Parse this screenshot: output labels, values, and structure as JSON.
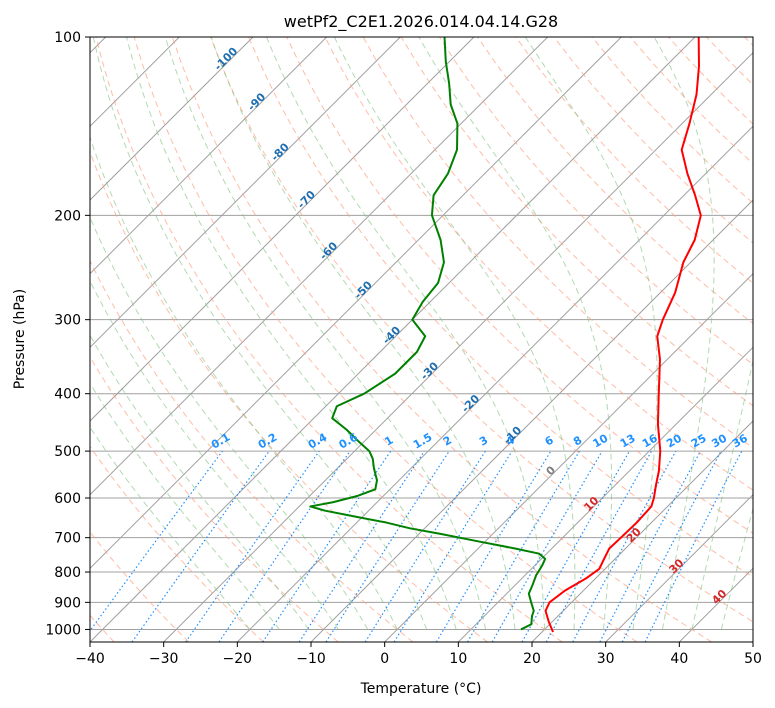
{
  "chart_data": {
    "type": "line",
    "title": "wetPf2_C2E1.2026.014.04.14.G28",
    "xlabel": "Temperature (°C)",
    "ylabel": "Pressure (hPa)",
    "xlim": [
      -40,
      50
    ],
    "ylim": [
      1050,
      100
    ],
    "x_ticks": [
      "−40",
      "−30",
      "−20",
      "−10",
      "0",
      "10",
      "20",
      "30",
      "40",
      "50"
    ],
    "x_tick_values": [
      -40,
      -30,
      -20,
      -10,
      0,
      10,
      20,
      30,
      40,
      50
    ],
    "y_ticks": [
      "100",
      "200",
      "300",
      "400",
      "500",
      "600",
      "700",
      "800",
      "900",
      "1000"
    ],
    "y_tick_values": [
      100,
      200,
      300,
      400,
      500,
      600,
      700,
      800,
      900,
      1000
    ],
    "colors": {
      "temperature": "#ff0000",
      "dewpoint": "#008000",
      "isotherm": "#a0a0a0",
      "dry_adiabat": "#ff9f80",
      "moist_adiabat": "#7fbf7f",
      "mixing_ratio": "#1e90ff",
      "theta_label": "#1f6fb0",
      "dry_label": "#d62728",
      "zero_label": "#7f7f7f"
    },
    "series": [
      {
        "name": "Temperature",
        "points": [
          {
            "p": 1010,
            "t": 21.5
          },
          {
            "p": 970,
            "t": 19.5
          },
          {
            "p": 930,
            "t": 17.6
          },
          {
            "p": 900,
            "t": 17.0
          },
          {
            "p": 860,
            "t": 17.5
          },
          {
            "p": 820,
            "t": 18.7
          },
          {
            "p": 790,
            "t": 19.2
          },
          {
            "p": 760,
            "t": 18.5
          },
          {
            "p": 730,
            "t": 17.8
          },
          {
            "p": 700,
            "t": 17.9
          },
          {
            "p": 660,
            "t": 18.0
          },
          {
            "p": 620,
            "t": 17.8
          },
          {
            "p": 600,
            "t": 17.0
          },
          {
            "p": 570,
            "t": 15.5
          },
          {
            "p": 540,
            "t": 14.0
          },
          {
            "p": 500,
            "t": 11.5
          },
          {
            "p": 450,
            "t": 7.5
          },
          {
            "p": 400,
            "t": 3.5
          },
          {
            "p": 350,
            "t": -1.0
          },
          {
            "p": 320,
            "t": -4.5
          },
          {
            "p": 300,
            "t": -6.0
          },
          {
            "p": 270,
            "t": -8.0
          },
          {
            "p": 240,
            "t": -11.0
          },
          {
            "p": 220,
            "t": -12.5
          },
          {
            "p": 200,
            "t": -15.0
          },
          {
            "p": 185,
            "t": -18.5
          },
          {
            "p": 170,
            "t": -22.5
          },
          {
            "p": 155,
            "t": -26.5
          },
          {
            "p": 140,
            "t": -29.0
          },
          {
            "p": 125,
            "t": -32.0
          },
          {
            "p": 112,
            "t": -35.5
          },
          {
            "p": 100,
            "t": -39.5
          }
        ]
      },
      {
        "name": "Dewpoint",
        "points": [
          {
            "p": 1000,
            "t": 16.8
          },
          {
            "p": 980,
            "t": 17.5
          },
          {
            "p": 950,
            "t": 16.5
          },
          {
            "p": 930,
            "t": 16.0
          },
          {
            "p": 900,
            "t": 14.5
          },
          {
            "p": 870,
            "t": 13.0
          },
          {
            "p": 840,
            "t": 12.3
          },
          {
            "p": 810,
            "t": 11.5
          },
          {
            "p": 780,
            "t": 11.0
          },
          {
            "p": 760,
            "t": 10.5
          },
          {
            "p": 745,
            "t": 9.0
          },
          {
            "p": 730,
            "t": 5.0
          },
          {
            "p": 710,
            "t": -1.0
          },
          {
            "p": 690,
            "t": -7.0
          },
          {
            "p": 675,
            "t": -12.0
          },
          {
            "p": 660,
            "t": -16.0
          },
          {
            "p": 645,
            "t": -21.0
          },
          {
            "p": 630,
            "t": -26.0
          },
          {
            "p": 620,
            "t": -28.5
          },
          {
            "p": 610,
            "t": -26.0
          },
          {
            "p": 595,
            "t": -23.5
          },
          {
            "p": 580,
            "t": -22.0
          },
          {
            "p": 560,
            "t": -23.0
          },
          {
            "p": 535,
            "t": -25.0
          },
          {
            "p": 515,
            "t": -26.5
          },
          {
            "p": 500,
            "t": -28.0
          },
          {
            "p": 480,
            "t": -31.0
          },
          {
            "p": 460,
            "t": -34.0
          },
          {
            "p": 440,
            "t": -37.5
          },
          {
            "p": 420,
            "t": -38.5
          },
          {
            "p": 400,
            "t": -36.5
          },
          {
            "p": 370,
            "t": -35.0
          },
          {
            "p": 340,
            "t": -35.0
          },
          {
            "p": 320,
            "t": -36.0
          },
          {
            "p": 300,
            "t": -40.0
          },
          {
            "p": 280,
            "t": -41.0
          },
          {
            "p": 260,
            "t": -41.5
          },
          {
            "p": 240,
            "t": -43.5
          },
          {
            "p": 220,
            "t": -47.0
          },
          {
            "p": 200,
            "t": -51.5
          },
          {
            "p": 185,
            "t": -54.0
          },
          {
            "p": 170,
            "t": -55.0
          },
          {
            "p": 155,
            "t": -57.0
          },
          {
            "p": 140,
            "t": -60.5
          },
          {
            "p": 130,
            "t": -64.0
          },
          {
            "p": 120,
            "t": -67.0
          },
          {
            "p": 110,
            "t": -70.5
          },
          {
            "p": 100,
            "t": -74.0
          }
        ]
      }
    ],
    "isotherm_labels": [
      {
        "text": "-100",
        "t": -100,
        "p": 110,
        "color_key": "theta_label"
      },
      {
        "text": "-90",
        "t": -90,
        "p": 130,
        "color_key": "theta_label"
      },
      {
        "text": "-80",
        "t": -80,
        "p": 158,
        "color_key": "theta_label"
      },
      {
        "text": "-70",
        "t": -70,
        "p": 190,
        "color_key": "theta_label"
      },
      {
        "text": "-60",
        "t": -60,
        "p": 232,
        "color_key": "theta_label"
      },
      {
        "text": "-50",
        "t": -50,
        "p": 270,
        "color_key": "theta_label"
      },
      {
        "text": "-40",
        "t": -40,
        "p": 322,
        "color_key": "theta_label"
      },
      {
        "text": "-30",
        "t": -30,
        "p": 370,
        "color_key": "theta_label"
      },
      {
        "text": "-20",
        "t": -20,
        "p": 420,
        "color_key": "theta_label"
      },
      {
        "text": "-10",
        "t": -10,
        "p": 475,
        "color_key": "theta_label"
      },
      {
        "text": "0",
        "t": 0,
        "p": 545,
        "color_key": "zero_label"
      },
      {
        "text": "10",
        "t": 10,
        "p": 620,
        "color_key": "dry_label"
      },
      {
        "text": "20",
        "t": 20,
        "p": 700,
        "color_key": "dry_label"
      },
      {
        "text": "30",
        "t": 30,
        "p": 790,
        "color_key": "dry_label"
      },
      {
        "text": "40",
        "t": 40,
        "p": 890,
        "color_key": "dry_label"
      }
    ],
    "mixing_ratio_labels": [
      "0.1",
      "0.2",
      "0.4",
      "0.6",
      "1",
      "1.5",
      "2",
      "3",
      "4",
      "6",
      "8",
      "10",
      "13",
      "16",
      "20",
      "25",
      "30",
      "36"
    ],
    "mixing_ratio_label_temps": [
      -22.5,
      -15.5,
      -8.8,
      -4.8,
      0.6,
      5.2,
      8.4,
      12.6,
      16.8,
      22.0,
      25.9,
      29.2,
      33.4,
      36.5,
      39.8,
      43.5,
      46.8,
      50.3
    ]
  }
}
